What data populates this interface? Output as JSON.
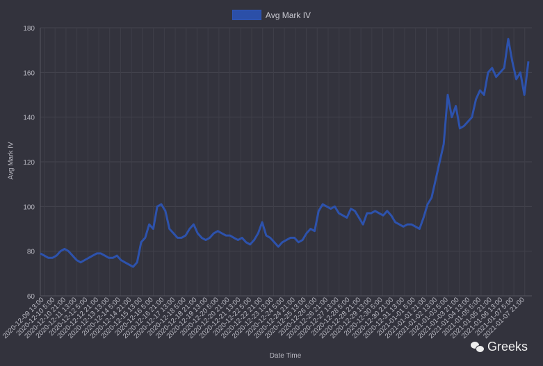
{
  "chart_data": {
    "type": "line",
    "legend": {
      "label": "Avg Mark IV",
      "position": "top"
    },
    "xlabel": "Date Time",
    "ylabel": "Avg Mark IV",
    "ylim": [
      60,
      180
    ],
    "yticks": [
      60,
      80,
      100,
      120,
      140,
      160,
      180
    ],
    "grid": true,
    "series_color": "#2d52ac",
    "xticks": [
      "2020-12-09 13:00",
      "2020-12-10 5:00",
      "2020-12-10 21:00",
      "2020-12-11 13:00",
      "2020-12-12 5:00",
      "2020-12-12 21:00",
      "2020-12-13 13:00",
      "2020-12-14 5:00",
      "2020-12-14 21:00",
      "2020-12-15 13:00",
      "2020-12-16 5:00",
      "2020-12-16 21:00",
      "2020-12-17 13:00",
      "2020-12-18 5:00",
      "2020-12-18 21:00",
      "2020-12-19 13:00",
      "2020-12-20 5:00",
      "2020-12-20 21:00",
      "2020-12-21 13:00",
      "2020-12-22 5:00",
      "2020-12-22 21:00",
      "2020-12-23 13:00",
      "2020-12-24 5:00",
      "2020-12-24 21:00",
      "2020-12-25 13:00",
      "2020-12-26 5:00",
      "2020-12-26 21:00",
      "2020-12-27 13:00",
      "2020-12-28 5:00",
      "2020-12-28 21:00",
      "2020-12-29 13:00",
      "2020-12-30 5:00",
      "2020-12-30 21:00",
      "2020-12-31 13:00",
      "2021-01-01 5:00",
      "2021-01-01 21:00",
      "2021-01-02 13:00",
      "2021-01-03 5:00",
      "2021-01-03 21:00",
      "2021-01-04 13:00",
      "2021-01-05 5:00",
      "2021-01-05 21:00",
      "2021-01-06 13:00",
      "2021-01-07 5:00",
      "2021-01-07 21:00"
    ],
    "series": [
      {
        "name": "Avg Mark IV",
        "values": [
          79,
          78,
          77,
          77,
          78,
          80,
          81,
          80,
          78,
          76,
          75,
          76,
          77,
          78,
          79,
          79,
          78,
          77,
          77,
          78,
          76,
          75,
          74,
          73,
          75,
          84,
          86,
          92,
          90,
          100,
          101,
          98,
          90,
          88,
          86,
          86,
          87,
          90,
          92,
          88,
          86,
          85,
          86,
          88,
          89,
          88,
          87,
          87,
          86,
          85,
          86,
          84,
          83,
          85,
          88,
          93,
          87,
          86,
          84,
          82,
          84,
          85,
          86,
          86,
          84,
          85,
          88,
          90,
          89,
          98,
          101,
          100,
          99,
          100,
          97,
          96,
          95,
          99,
          98,
          95,
          92,
          97,
          97,
          98,
          97,
          96,
          98,
          96,
          93,
          92,
          91,
          92,
          92,
          91,
          90,
          95,
          101,
          104,
          112,
          120,
          128,
          150,
          140,
          145,
          135,
          136,
          138,
          140,
          148,
          152,
          150,
          160,
          162,
          158,
          160,
          162,
          175,
          165,
          157,
          160,
          150,
          165
        ]
      }
    ]
  },
  "watermark": {
    "text": "Greeks",
    "icon": "wechat-icon"
  }
}
